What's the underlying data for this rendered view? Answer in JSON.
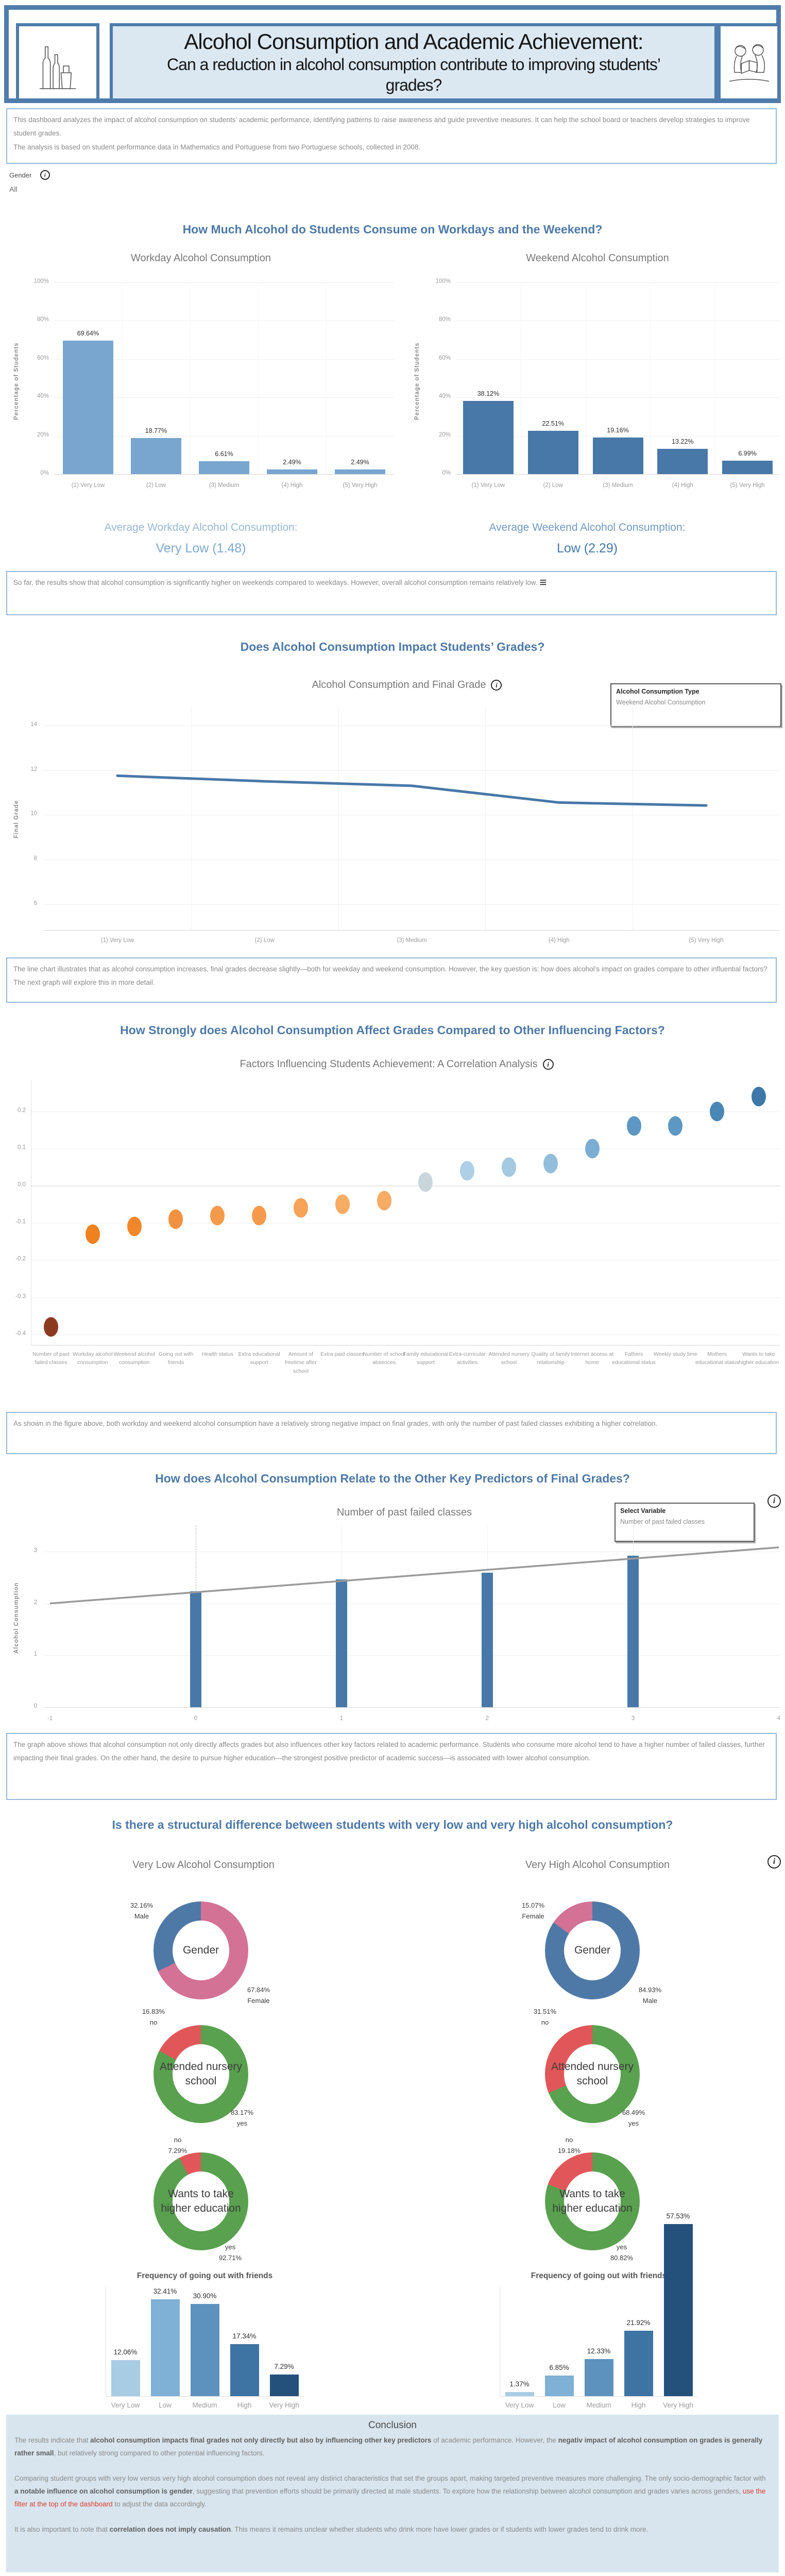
{
  "header": {
    "title_line1": "Alcohol Consumption and Academic Achievement:",
    "title_line2": "Can a reduction in alcohol consumption contribute to improving students’ grades?",
    "left_logo": "bottles-line-art",
    "right_logo": "students-reading-line-art"
  },
  "description": {
    "text1": "This dashboard analyzes the impact of alcohol consumption on students’ academic performance, identifying patterns to raise awareness and guide preventive measures. It can help the school board or teachers develop strategies to improve student grades.",
    "text2": "The analysis is based on student performance data in Mathematics and Portuguese from two Portuguese schools, collected in 2008."
  },
  "gender_filter": {
    "label": "Gender",
    "value": "All"
  },
  "icons": {
    "info": "i",
    "menu": "≡"
  },
  "headings": {
    "h1": "How Much Alcohol do Students Consume on Workdays and the Weekend?",
    "h2": "Does Alcohol Consumption Impact Students’ Grades?",
    "h3": "How Strongly does Alcohol Consumption Affect Grades Compared to Other Influencing Factors?",
    "h4": "How does Alcohol Consumption Relate to the Other Key Predictors of Final Grades?",
    "h5": "Is there a structural difference between students with very low and very high alcohol consumption?",
    "col_low": "Very Low Alcohol Consumption",
    "col_high": "Very High Alcohol Consumption"
  },
  "averages": {
    "workday_label": "Average Workday Alcohol Consumption:",
    "workday_value": "Very Low (1.48)",
    "weekend_label": "Average Weekend Alcohol Consumption:",
    "weekend_value": "Low (2.29)"
  },
  "legends": {
    "line": {
      "label": "Alcohol Consumption Type",
      "value": "Weekend Alcohol Consumption"
    },
    "combo": {
      "label": "Select Variable",
      "value": "Number of past failed classes"
    }
  },
  "notes": {
    "note1": "So far, the results show that alcohol consumption is significantly higher on weekends compared to weekdays. However, overall alcohol consumption remains relatively low.",
    "note2": "The line chart illustrates that as alcohol consumption increases, final grades decrease slightly—both for weekday and weekend consumption. However, the key question is: how does alcohol’s impact on grades compare to other influential factors? The next graph will explore this in more detail.",
    "note3": "As shown in the figure above, both workday and weekend alcohol consumption have a relatively strong negative impact on final grades, with only the number of past failed classes exhibiting a higher correlation.",
    "note4": "The graph above shows that alcohol consumption not only directly affects grades but also influences other key factors related to academic performance. Students who consume more alcohol tend to have a higher number of failed classes, further impacting their final grades. On the other hand, the desire to pursue higher education—the strongest positive predictor of academic success—is associated with lower alcohol consumption."
  },
  "chart_data": [
    {
      "id": "workday_consumption",
      "type": "bar",
      "title": "Workday Alcohol Consumption",
      "ylabel": "Percentage of Students",
      "categories": [
        "(1) Very Low",
        "(2) Low",
        "(3) Medium",
        "(4) High",
        "(5) Very High"
      ],
      "values": [
        69.64,
        18.77,
        6.61,
        2.49,
        2.49
      ],
      "labels": [
        "69.64%",
        "18.77%",
        "6.61%",
        "2.49%",
        "2.49%"
      ],
      "yticks": [
        "0%",
        "20%",
        "40%",
        "60%",
        "80%",
        "100%"
      ],
      "ylim": [
        0,
        100
      ],
      "bar_color": "#78A6CF"
    },
    {
      "id": "weekend_consumption",
      "type": "bar",
      "title": "Weekend Alcohol Consumption",
      "ylabel": "Percentage of Students",
      "categories": [
        "(1) Very Low",
        "(2) Low",
        "(3) Medium",
        "(4) High",
        "(5) Very High"
      ],
      "values": [
        38.12,
        22.51,
        19.16,
        13.22,
        6.99
      ],
      "labels": [
        "38.12%",
        "22.51%",
        "19.16%",
        "13.22%",
        "6.99%"
      ],
      "yticks": [
        "0%",
        "20%",
        "40%",
        "60%",
        "80%",
        "100%"
      ],
      "ylim": [
        0,
        100
      ],
      "bar_color": "#4878A8"
    },
    {
      "id": "grade_line",
      "type": "line",
      "title": "Alcohol Consumption and Final Grade",
      "ylabel": "Final Grade",
      "categories": [
        "(1) Very Low",
        "(2) Low",
        "(3) Medium",
        "(4) High",
        "(5) Very High"
      ],
      "values": [
        11.75,
        11.5,
        11.3,
        10.55,
        10.42
      ],
      "yticks": [
        14,
        12,
        10,
        8,
        6
      ],
      "ylim": [
        5,
        14.8
      ],
      "line_color": "#4878A8"
    },
    {
      "id": "correlation",
      "type": "scatter",
      "title": "Factors Influencing Students Achievement: A Correlation Analysis",
      "categories": [
        "Number of past failed classes",
        "Workday alcohol consumption",
        "Weekend alcohol consumption",
        "Going out with friends",
        "Health status",
        "Extra educational support",
        "Amount of freetime after school",
        "Extra paid classes",
        "Number of school absences",
        "Family educational support",
        "Extra-curricular activities",
        "Attended nursery school",
        "Quality of family relationship",
        "Internet access at home",
        "Fathers educational status",
        "Weekly study time",
        "Mothers educational status",
        "Wants to take higher education"
      ],
      "values": [
        -0.38,
        -0.13,
        -0.11,
        -0.09,
        -0.08,
        -0.08,
        -0.06,
        -0.05,
        -0.04,
        0.01,
        0.04,
        0.05,
        0.06,
        0.1,
        0.16,
        0.16,
        0.2,
        0.24
      ],
      "colors": [
        "#8B3A1F",
        "#F0811F",
        "#F0882B",
        "#F29140",
        "#F59A4B",
        "#F59A4B",
        "#F6A257",
        "#F8AB63",
        "#F8AB63",
        "#C9D6DB",
        "#AECFE5",
        "#A4C9E1",
        "#93BEDB",
        "#7BAED3",
        "#5D97C4",
        "#5D97C4",
        "#4A87B5",
        "#3E78A9"
      ],
      "yticks": [
        "0.2",
        "0.1",
        "0.0",
        "-0.1",
        "-0.2",
        "-0.3",
        "-0.4"
      ],
      "ylim": [
        -0.45,
        0.28
      ],
      "arrow_highlight": [
        "Workday alcohol consumption",
        "Weekend alcohol consumption"
      ]
    },
    {
      "id": "combo_failed_classes",
      "type": "bar+line",
      "title": "Number of past failed classes",
      "ylabel": "Alcohol Consumption",
      "x": [
        0,
        1,
        2,
        3
      ],
      "bar_values": [
        2.23,
        2.46,
        2.59,
        2.92
      ],
      "trend_line": {
        "x": [
          -1,
          4
        ],
        "y": [
          2.0,
          3.08
        ]
      },
      "xticks": [
        "-1",
        "0",
        "1",
        "2",
        "3",
        "4"
      ],
      "yticks": [
        "0",
        "1",
        "2",
        "3"
      ],
      "xlim": [
        -1,
        4
      ],
      "ylim": [
        0,
        3.5
      ],
      "bar_color": "#4878A8"
    },
    {
      "id": "profile_donuts",
      "type": "pie",
      "groups": [
        {
          "group": "Very Low Alcohol Consumption",
          "charts": [
            {
              "center_label": "Gender",
              "slices": [
                {
                  "label": "Female",
                  "value": 67.84,
                  "display": [
                    "67.84%",
                    "Female"
                  ],
                  "color": "#D37295"
                },
                {
                  "label": "Male",
                  "value": 32.16,
                  "display": [
                    "32.16%",
                    "Male"
                  ],
                  "color": "#4E79A7"
                }
              ]
            },
            {
              "center_label": "Attended nursery school",
              "slices": [
                {
                  "label": "yes",
                  "value": 83.17,
                  "display": [
                    "83.17%",
                    "yes"
                  ],
                  "color": "#59A14F"
                },
                {
                  "label": "no",
                  "value": 16.83,
                  "display": [
                    "16.83%",
                    "no"
                  ],
                  "color": "#E15759"
                }
              ]
            },
            {
              "center_label": "Wants to take higher education",
              "slices": [
                {
                  "label": "yes",
                  "value": 92.71,
                  "display": [
                    "yes",
                    "92.71%"
                  ],
                  "color": "#59A14F"
                },
                {
                  "label": "no",
                  "value": 7.29,
                  "display": [
                    "no",
                    "7.29%"
                  ],
                  "color": "#E15759"
                }
              ]
            }
          ]
        },
        {
          "group": "Very High Alcohol Consumption",
          "charts": [
            {
              "center_label": "Gender",
              "slices": [
                {
                  "label": "Male",
                  "value": 84.93,
                  "display": [
                    "84.93%",
                    "Male"
                  ],
                  "color": "#4E79A7"
                },
                {
                  "label": "Female",
                  "value": 15.07,
                  "display": [
                    "15.07%",
                    "Female"
                  ],
                  "color": "#D37295"
                }
              ]
            },
            {
              "center_label": "Attended nursery school",
              "slices": [
                {
                  "label": "yes",
                  "value": 68.49,
                  "display": [
                    "68.49%",
                    "yes"
                  ],
                  "color": "#59A14F"
                },
                {
                  "label": "no",
                  "value": 31.51,
                  "display": [
                    "31.51%",
                    "no"
                  ],
                  "color": "#E15759"
                }
              ]
            },
            {
              "center_label": "Wants to take higher education",
              "slices": [
                {
                  "label": "yes",
                  "value": 80.82,
                  "display": [
                    "yes",
                    "80.82%"
                  ],
                  "color": "#59A14F"
                },
                {
                  "label": "no",
                  "value": 19.18,
                  "display": [
                    "no",
                    "19.18%"
                  ],
                  "color": "#E15759"
                }
              ]
            }
          ]
        }
      ]
    },
    {
      "id": "going_out_very_low",
      "type": "bar",
      "title": "Frequency of going out with friends",
      "categories": [
        "Very Low",
        "Low",
        "Medium",
        "High",
        "Very High"
      ],
      "values": [
        12.06,
        32.41,
        30.9,
        17.34,
        7.29
      ],
      "labels": [
        "12.06%",
        "32.41%",
        "30.90%",
        "17.34%",
        "7.29%"
      ],
      "bar_colors": [
        "#A9CCE5",
        "#7FB0D5",
        "#5E92BE",
        "#3D74A4",
        "#24517C"
      ],
      "ylim": [
        0,
        35
      ]
    },
    {
      "id": "going_out_very_high",
      "type": "bar",
      "title": "Frequency of going out with friends",
      "categories": [
        "Very Low",
        "Low",
        "Medium",
        "High",
        "Very High"
      ],
      "values": [
        1.37,
        6.85,
        12.33,
        21.92,
        57.53
      ],
      "labels": [
        "1.37%",
        "6.85%",
        "12.33%",
        "21.92%",
        "57.53%"
      ],
      "bar_colors": [
        "#A9CCE5",
        "#7FB0D5",
        "#5E92BE",
        "#3D74A4",
        "#24517C"
      ],
      "ylim": [
        0,
        60
      ]
    }
  ],
  "conclusion": {
    "title": "Conclusion",
    "paragraphs": [
      [
        {
          "t": "The results indicate that "
        },
        {
          "t": "alcohol consumption impacts final grades not only directly but also by influencing other key predictors",
          "b": true
        },
        {
          "t": " of academic performance. However, the "
        },
        {
          "t": "negativ impact of alcohol consumption on grades is generally rather small",
          "b": true
        },
        {
          "t": ", but relatively strong compared to other potential influencing factors."
        }
      ],
      [
        {
          "t": "Comparing student groups with very low versus very high alcohol consumption does not reveal any distinct characteristics that set the groups apart, making targeted preventive measures more challenging. The only socio-demographic factor with "
        },
        {
          "t": "a notable influence on alcohol consumption is gender",
          "b": true
        },
        {
          "t": ", suggesting that prevention efforts should be primarily directed at male students. To explore how the relationship between alcohol consumption and grades varies across genders, "
        },
        {
          "t": "use the filter at the top of the dashboard",
          "r": true
        },
        {
          "t": " to adjust the data accordingly."
        }
      ],
      [
        {
          "t": "It is also important to note that "
        },
        {
          "t": "correlation does not imply causation",
          "b": true
        },
        {
          "t": ". This means it remains unclear whether students who drink more have lower grades or if students with lower grades tend to drink more."
        }
      ]
    ]
  }
}
